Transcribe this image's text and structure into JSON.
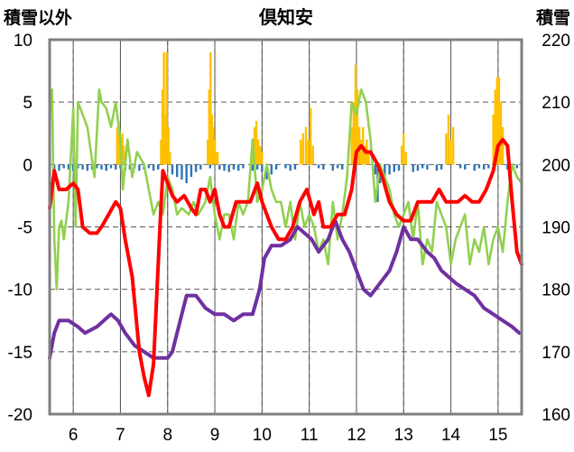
{
  "chart_data": {
    "type": "line",
    "title": "倶知安",
    "ylabel_left": "積雪以外",
    "ylabel_right": "積雪",
    "xlim": [
      5.5,
      15.5
    ],
    "ylim_left": [
      -20,
      10
    ],
    "ylim_right": [
      160,
      220
    ],
    "x_ticks": [
      6,
      7,
      8,
      9,
      10,
      11,
      12,
      13,
      14,
      15
    ],
    "x_tick_labels": [
      "6",
      "7",
      "8",
      "9",
      "10",
      "11",
      "12",
      "13",
      "14",
      "15"
    ],
    "y_left_ticks": [
      10,
      5,
      0,
      -5,
      -10,
      -15,
      -20
    ],
    "y_left_tick_labels": [
      "10",
      "5",
      "0",
      "-5",
      "-10",
      "-15",
      "-20"
    ],
    "y_right_ticks": [
      220,
      210,
      200,
      190,
      180,
      170,
      160
    ],
    "y_right_tick_labels": [
      "220",
      "210",
      "200",
      "190",
      "180",
      "170",
      "160"
    ],
    "grid": true,
    "colors": {
      "temperature": "#ff0000",
      "snow_depth": "#7030a0",
      "green_series": "#92d050",
      "snowfall_bars": "#ffc000",
      "negative_bars": "#2e75b6",
      "frame": "#7f7f7f",
      "grid": "#595959"
    },
    "series": [
      {
        "axis": "left",
        "color": "#ff0000",
        "x": [
          5.5,
          5.6,
          5.7,
          5.85,
          6.0,
          6.1,
          6.2,
          6.35,
          6.5,
          6.6,
          6.75,
          6.9,
          7.0,
          7.1,
          7.25,
          7.4,
          7.5,
          7.6,
          7.7,
          7.75,
          7.8,
          7.85,
          7.9,
          7.95,
          8.0,
          8.05,
          8.1,
          8.2,
          8.35,
          8.5,
          8.6,
          8.7,
          8.8,
          8.9,
          9.0,
          9.1,
          9.2,
          9.3,
          9.45,
          9.6,
          9.75,
          9.9,
          10.0,
          10.1,
          10.2,
          10.35,
          10.5,
          10.65,
          10.8,
          10.95,
          11.1,
          11.2,
          11.3,
          11.45,
          11.6,
          11.75,
          11.9,
          12.0,
          12.1,
          12.2,
          12.3,
          12.45,
          12.55,
          12.7,
          12.85,
          13.0,
          13.15,
          13.3,
          13.45,
          13.6,
          13.75,
          13.9,
          14.0,
          14.15,
          14.3,
          14.45,
          14.6,
          14.75,
          14.9,
          15.0,
          15.1,
          15.2,
          15.3,
          15.4,
          15.5
        ],
        "y": [
          -3.5,
          -0.5,
          -2,
          -2,
          -1.5,
          -2,
          -5,
          -5.5,
          -5.5,
          -5,
          -4,
          -3,
          -3.5,
          -6,
          -9,
          -15,
          -17,
          -18.5,
          -16,
          -12,
          -8,
          -4,
          -0.5,
          -1,
          -1.5,
          -2,
          -2.5,
          -3,
          -2.5,
          -3.5,
          -4,
          -2,
          -2,
          -3,
          -2,
          -4,
          -5,
          -5,
          -3,
          -3,
          -3,
          -1.5,
          -3,
          -4,
          -5,
          -6,
          -6,
          -5,
          -3,
          -2,
          -4,
          -3,
          -5,
          -5,
          -4,
          -4,
          -2,
          1,
          1.5,
          1,
          1,
          0,
          -1,
          -3,
          -4,
          -4.5,
          -4.5,
          -3,
          -3,
          -3,
          -2,
          -3,
          -3,
          -3,
          -2.5,
          -3,
          -3,
          -2,
          -0.5,
          1.5,
          2,
          1.5,
          -3,
          -7,
          -8
        ]
      },
      {
        "axis": "right",
        "color": "#7030a0",
        "x": [
          5.5,
          5.6,
          5.7,
          5.9,
          6.1,
          6.25,
          6.5,
          6.65,
          6.8,
          6.95,
          7.1,
          7.3,
          7.5,
          7.7,
          7.85,
          8.0,
          8.1,
          8.2,
          8.4,
          8.6,
          8.8,
          9.0,
          9.2,
          9.4,
          9.6,
          9.8,
          9.95,
          10.05,
          10.2,
          10.4,
          10.6,
          10.75,
          10.9,
          11.05,
          11.2,
          11.4,
          11.55,
          11.7,
          11.85,
          12.0,
          12.15,
          12.3,
          12.5,
          12.7,
          12.85,
          13.0,
          13.15,
          13.3,
          13.5,
          13.65,
          13.8,
          13.95,
          14.1,
          14.3,
          14.5,
          14.7,
          14.9,
          15.1,
          15.3,
          15.45
        ],
        "y": [
          169,
          173,
          175,
          175,
          174,
          173,
          174,
          175,
          176,
          175,
          173,
          171,
          170,
          169,
          169,
          169,
          170,
          173,
          179,
          179,
          177,
          176,
          176,
          175,
          176,
          176,
          180,
          185,
          187,
          187,
          188,
          190,
          189,
          188,
          186,
          188,
          191,
          188,
          186,
          183,
          180,
          179,
          181,
          183,
          186,
          190,
          188,
          188,
          186,
          185,
          183,
          182,
          181,
          180,
          179,
          177,
          176,
          175,
          174,
          173
        ]
      },
      {
        "axis": "left",
        "color": "#92d050",
        "x": [
          5.5,
          5.55,
          5.6,
          5.65,
          5.7,
          5.75,
          5.8,
          5.9,
          6.0,
          6.05,
          6.1,
          6.2,
          6.3,
          6.45,
          6.55,
          6.6,
          6.7,
          6.8,
          6.9,
          7.0,
          7.05,
          7.15,
          7.25,
          7.35,
          7.5,
          7.6,
          7.7,
          7.8,
          7.9,
          8.0,
          8.1,
          8.2,
          8.3,
          8.45,
          8.55,
          8.65,
          8.8,
          8.9,
          9.0,
          9.1,
          9.2,
          9.3,
          9.4,
          9.5,
          9.6,
          9.7,
          9.8,
          9.9,
          10.0,
          10.1,
          10.2,
          10.3,
          10.4,
          10.5,
          10.6,
          10.7,
          10.8,
          10.9,
          11.0,
          11.1,
          11.2,
          11.3,
          11.4,
          11.5,
          11.6,
          11.7,
          11.8,
          11.9,
          12.0,
          12.1,
          12.2,
          12.3,
          12.4,
          12.5,
          12.6,
          12.7,
          12.8,
          12.9,
          13.0,
          13.1,
          13.2,
          13.3,
          13.4,
          13.5,
          13.6,
          13.7,
          13.8,
          13.9,
          14.0,
          14.1,
          14.2,
          14.3,
          14.4,
          14.5,
          14.6,
          14.7,
          14.8,
          14.9,
          15.0,
          15.1,
          15.2,
          15.3,
          15.4,
          15.5
        ],
        "y": [
          4,
          6,
          -6,
          -10,
          -5,
          -4.5,
          -6,
          -3,
          4.5,
          -5,
          5,
          4,
          3,
          -1,
          6,
          5,
          4.5,
          3,
          5,
          2,
          -2,
          2,
          -1,
          1,
          0,
          -2,
          -4,
          -3,
          -4,
          -1,
          -2,
          -4,
          -3.5,
          -4,
          -3,
          -4,
          -3,
          -1,
          -4,
          -6,
          -4,
          -4,
          -6,
          -3,
          -4,
          -3,
          2,
          -3,
          -2,
          0,
          -2,
          -3,
          -3,
          -5,
          -3,
          -6,
          -3,
          -5,
          -4,
          -5,
          -7,
          -6,
          -8,
          -3,
          -6,
          -4,
          -1,
          5,
          4,
          6,
          5,
          2,
          -3,
          0,
          -1,
          -2,
          -4,
          -5,
          -4,
          -3,
          -6,
          -3,
          -8,
          -6,
          -7,
          -3,
          -4,
          -5,
          -8,
          -6,
          -5,
          -4,
          -8,
          -6,
          -7,
          -5,
          -8,
          -6,
          -5,
          -7,
          -3,
          0,
          -1,
          -1.5
        ]
      }
    ],
    "bars_positive": {
      "axis": "left",
      "color": "#ffc000",
      "x": [
        6.93,
        6.96,
        7.0,
        7.04,
        7.07,
        7.1,
        7.86,
        7.89,
        7.92,
        7.95,
        7.98,
        8.02,
        8.05,
        8.85,
        8.88,
        8.91,
        8.94,
        8.97,
        9.0,
        9.03,
        9.06,
        9.8,
        9.84,
        9.88,
        9.92,
        9.96,
        10.0,
        10.82,
        10.87,
        10.93,
        10.98,
        11.03,
        11.08,
        11.9,
        11.94,
        11.98,
        12.02,
        12.06,
        12.1,
        12.14,
        12.18,
        12.22,
        12.26,
        12.96,
        13.0,
        13.05,
        13.9,
        13.95,
        14.0,
        14.05,
        14.9,
        14.94,
        14.98,
        15.02,
        15.06,
        15.1
      ],
      "y": [
        3,
        3.5,
        2,
        2.5,
        1.5,
        1,
        2,
        6,
        9,
        4,
        9,
        3,
        1,
        2,
        6,
        9,
        4,
        3,
        2,
        1,
        1,
        2,
        3,
        3.5,
        2,
        1.5,
        1,
        2,
        2.5,
        3,
        2,
        4.5,
        1.5,
        3,
        5,
        8,
        6,
        3,
        2,
        3,
        1.5,
        2,
        1,
        1.5,
        2.5,
        1,
        2.5,
        4,
        2,
        3,
        4,
        6,
        7,
        7,
        5,
        3
      ]
    },
    "bars_negative": {
      "axis": "left",
      "color": "#2e75b6",
      "x": [
        5.6,
        5.7,
        5.8,
        5.9,
        6.0,
        6.1,
        6.2,
        6.3,
        6.4,
        6.5,
        6.6,
        6.7,
        6.8,
        6.9,
        7.0,
        7.1,
        7.2,
        7.3,
        7.4,
        7.5,
        7.6,
        7.7,
        7.8,
        8.1,
        8.2,
        8.3,
        8.4,
        8.5,
        8.6,
        8.7,
        8.9,
        9.1,
        9.2,
        9.3,
        9.4,
        9.5,
        9.6,
        9.8,
        9.9,
        10.0,
        10.1,
        10.2,
        10.3,
        10.5,
        10.6,
        10.7,
        11.2,
        11.3,
        11.5,
        11.6,
        11.7,
        12.4,
        12.45,
        12.5,
        12.6,
        12.7,
        12.8,
        12.9,
        13.2,
        13.3,
        13.4,
        13.5,
        13.7,
        13.8,
        14.2,
        14.3,
        14.5,
        14.6,
        14.7,
        14.8,
        15.2,
        15.4
      ],
      "y": [
        -0.5,
        -0.5,
        -0.3,
        -0.4,
        -0.5,
        -0.3,
        -0.4,
        -0.5,
        -0.4,
        -0.3,
        -0.4,
        -0.5,
        -0.3,
        -0.4,
        -0.3,
        -0.5,
        -0.4,
        -0.3,
        -0.5,
        -0.4,
        -0.3,
        -0.5,
        -0.4,
        -0.8,
        -1,
        -1.2,
        -1.5,
        -1,
        -0.6,
        -0.4,
        -0.3,
        -0.4,
        -0.5,
        -0.6,
        -0.4,
        -0.5,
        -0.3,
        -0.5,
        -0.4,
        -0.6,
        -1.2,
        -0.8,
        -0.4,
        -0.3,
        -0.5,
        -0.4,
        -0.3,
        -0.4,
        -0.5,
        -0.3,
        -0.4,
        -0.8,
        -3,
        -1.5,
        -1,
        -0.8,
        -0.6,
        -0.5,
        -0.6,
        -0.5,
        -0.3,
        -0.4,
        -0.5,
        -0.4,
        -0.3,
        -0.4,
        -0.5,
        -0.3,
        -0.4,
        -0.3,
        -0.4,
        -0.3
      ]
    }
  }
}
